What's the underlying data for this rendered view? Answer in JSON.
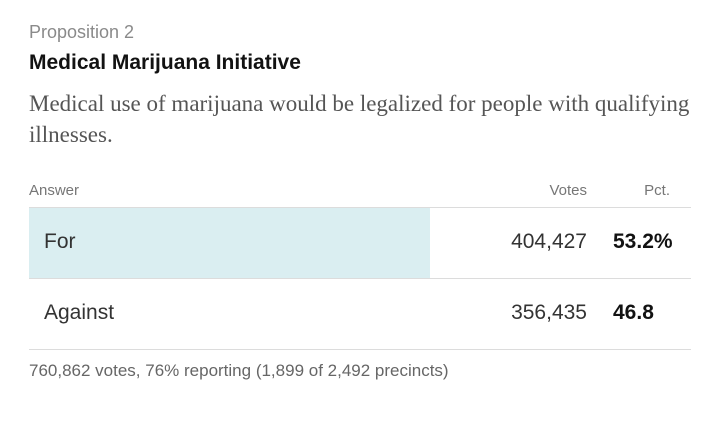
{
  "race": {
    "eyebrow": "Proposition 2",
    "title": "Medical Marijuana Initiative",
    "description": "Medical use of marijuana would be legalized for people with qualifying illnesses."
  },
  "table": {
    "headers": {
      "answer": "Answer",
      "votes": "Votes",
      "pct": "Pct."
    },
    "rows": [
      {
        "answer": "For",
        "votes": "404,427",
        "pct": "53.2%",
        "share": 0.532,
        "winner": true
      },
      {
        "answer": "Against",
        "votes": "356,435",
        "pct": "46.8",
        "share": 0.468,
        "winner": false
      }
    ]
  },
  "footer": "760,862 votes, 76% reporting (1,899 of 2,492 precincts)",
  "colors": {
    "winner_bar": "#daeef1",
    "divider": "#dcdcdc"
  }
}
